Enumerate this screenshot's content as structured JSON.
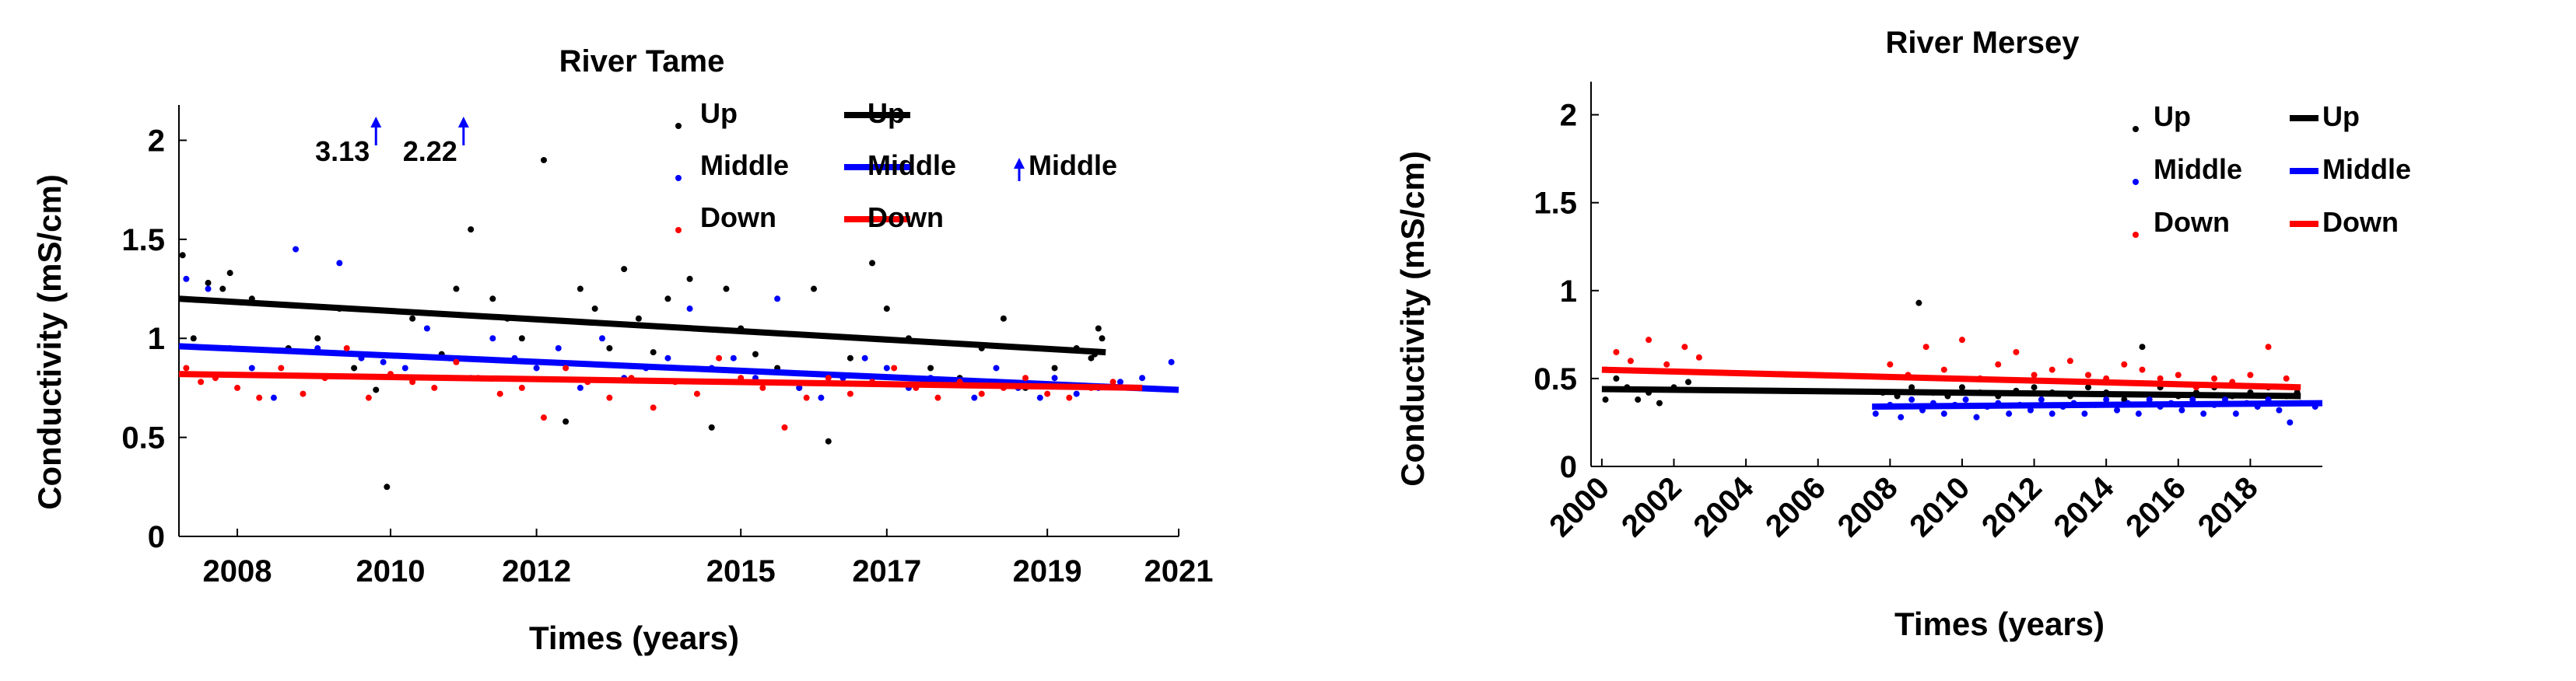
{
  "chart_data": [
    {
      "type": "scatter",
      "title": "River Tame",
      "xlabel": "Times (years)",
      "ylabel": "Conductivity (mS/cm)",
      "xlim": [
        2007.3,
        2021.0
      ],
      "ylim": [
        0,
        2.1
      ],
      "x_ticks": [
        {
          "value": 2008.1,
          "label": "2008"
        },
        {
          "value": 2010.2,
          "label": "2010"
        },
        {
          "value": 2012.2,
          "label": "2012"
        },
        {
          "value": 2015.0,
          "label": "2015"
        },
        {
          "value": 2017.0,
          "label": "2017"
        },
        {
          "value": 2019.2,
          "label": "2019"
        },
        {
          "value": 2021.0,
          "label": "2021"
        }
      ],
      "y_ticks": [
        {
          "value": 0,
          "label": "0"
        },
        {
          "value": 0.5,
          "label": "0.5"
        },
        {
          "value": 1,
          "label": "1"
        },
        {
          "value": 1.5,
          "label": "1.5"
        },
        {
          "value": 2,
          "label": "2"
        }
      ],
      "legend": {
        "position": "top-right",
        "marker_entries": [
          "Up",
          "Middle",
          "Down"
        ],
        "line_entries": [
          "Up",
          "Middle",
          "Down"
        ],
        "arrow_entry": "Middle"
      },
      "annotations": [
        {
          "text": "3.13",
          "x": 2010.0,
          "series": "Middle"
        },
        {
          "text": "2.22",
          "x": 2011.2,
          "series": "Middle"
        }
      ],
      "series": [
        {
          "name": "Up",
          "color": "#000000",
          "trend": {
            "x": [
              2007.3,
              2020.0
            ],
            "y": [
              1.2,
              0.93
            ]
          },
          "x": [
            2007.35,
            2007.5,
            2007.7,
            2007.9,
            2008.0,
            2008.3,
            2008.8,
            2009.2,
            2009.5,
            2009.7,
            2010.0,
            2010.15,
            2010.5,
            2010.9,
            2011.1,
            2011.3,
            2011.6,
            2011.8,
            2012.0,
            2012.3,
            2012.6,
            2012.8,
            2013.0,
            2013.2,
            2013.4,
            2013.6,
            2013.8,
            2014.0,
            2014.3,
            2014.6,
            2014.8,
            2015.0,
            2015.2,
            2015.5,
            2015.8,
            2016.0,
            2016.2,
            2016.5,
            2016.8,
            2017.0,
            2017.3,
            2017.6,
            2018.0,
            2018.3,
            2018.6,
            2018.9,
            2019.3,
            2019.6,
            2019.8,
            2019.85,
            2019.9,
            2019.95
          ],
          "y": [
            1.42,
            1.0,
            1.28,
            1.25,
            1.33,
            1.2,
            0.95,
            1.0,
            1.15,
            0.85,
            0.74,
            0.25,
            1.1,
            0.92,
            1.25,
            1.55,
            1.2,
            1.1,
            1.0,
            1.9,
            0.58,
            1.25,
            1.15,
            0.95,
            1.35,
            1.1,
            0.93,
            1.2,
            1.3,
            0.55,
            1.25,
            1.05,
            0.92,
            0.85,
            0.75,
            1.25,
            0.48,
            0.9,
            1.38,
            1.15,
            1.0,
            0.85,
            0.8,
            0.95,
            1.1,
            0.75,
            0.85,
            0.95,
            0.9,
            0.92,
            1.05,
            1.0
          ]
        },
        {
          "name": "Middle",
          "color": "#0000ff",
          "trend": {
            "x": [
              2007.3,
              2021.0
            ],
            "y": [
              0.96,
              0.74
            ]
          },
          "x": [
            2007.4,
            2007.7,
            2008.0,
            2008.3,
            2008.6,
            2008.9,
            2009.2,
            2009.5,
            2009.8,
            2010.1,
            2010.4,
            2010.7,
            2011.0,
            2011.3,
            2011.6,
            2011.9,
            2012.2,
            2012.5,
            2012.8,
            2013.1,
            2013.4,
            2013.7,
            2014.0,
            2014.3,
            2014.6,
            2014.9,
            2015.2,
            2015.5,
            2015.8,
            2016.1,
            2016.4,
            2016.7,
            2017.0,
            2017.3,
            2017.6,
            2017.9,
            2018.2,
            2018.5,
            2018.8,
            2019.1,
            2019.3,
            2019.6,
            2019.9,
            2020.2,
            2020.5,
            2020.9
          ],
          "y": [
            1.3,
            1.25,
            0.95,
            0.85,
            0.7,
            1.45,
            0.95,
            1.38,
            0.9,
            0.88,
            0.85,
            1.05,
            0.9,
            0.8,
            1.0,
            0.9,
            0.85,
            0.95,
            0.75,
            1.0,
            0.8,
            0.85,
            0.9,
            1.15,
            0.85,
            0.9,
            0.8,
            1.2,
            0.75,
            0.7,
            0.8,
            0.9,
            0.85,
            0.75,
            0.8,
            0.78,
            0.7,
            0.85,
            0.75,
            0.7,
            0.8,
            0.72,
            0.75,
            0.78,
            0.8,
            0.88
          ]
        },
        {
          "name": "Down",
          "color": "#ff0000",
          "trend": {
            "x": [
              2007.3,
              2020.5
            ],
            "y": [
              0.82,
              0.75
            ]
          },
          "x": [
            2007.4,
            2007.6,
            2007.8,
            2008.1,
            2008.4,
            2008.7,
            2009.0,
            2009.3,
            2009.6,
            2009.9,
            2010.2,
            2010.5,
            2010.8,
            2011.1,
            2011.4,
            2011.7,
            2012.0,
            2012.3,
            2012.6,
            2012.9,
            2013.2,
            2013.5,
            2013.8,
            2014.1,
            2014.4,
            2014.7,
            2015.0,
            2015.3,
            2015.6,
            2015.9,
            2016.2,
            2016.5,
            2016.8,
            2017.1,
            2017.4,
            2017.7,
            2018.0,
            2018.3,
            2018.6,
            2018.9,
            2019.2,
            2019.5,
            2019.8,
            2020.1
          ],
          "y": [
            0.85,
            0.78,
            0.8,
            0.75,
            0.7,
            0.85,
            0.72,
            0.8,
            0.95,
            0.7,
            0.82,
            0.78,
            0.75,
            0.88,
            0.8,
            0.72,
            0.75,
            0.6,
            0.85,
            0.78,
            0.7,
            0.8,
            0.65,
            0.78,
            0.72,
            0.9,
            0.8,
            0.75,
            0.55,
            0.7,
            0.8,
            0.72,
            0.78,
            0.85,
            0.75,
            0.7,
            0.78,
            0.72,
            0.75,
            0.8,
            0.72,
            0.7,
            0.75,
            0.78
          ]
        }
      ]
    },
    {
      "type": "scatter",
      "title": "River Mersey",
      "xlabel": "Times (years)",
      "ylabel": "Conductivity (mS/cm)",
      "xlim": [
        1999.7,
        2020.0
      ],
      "ylim": [
        0,
        2.1
      ],
      "x_ticks": [
        {
          "value": 2000,
          "label": "2000"
        },
        {
          "value": 2002,
          "label": "2002"
        },
        {
          "value": 2004,
          "label": "2004"
        },
        {
          "value": 2006,
          "label": "2006"
        },
        {
          "value": 2008,
          "label": "2008"
        },
        {
          "value": 2010,
          "label": "2010"
        },
        {
          "value": 2012,
          "label": "2012"
        },
        {
          "value": 2014,
          "label": "2014"
        },
        {
          "value": 2016,
          "label": "2016"
        },
        {
          "value": 2018,
          "label": "2018"
        }
      ],
      "y_ticks": [
        {
          "value": 0,
          "label": "0"
        },
        {
          "value": 0.5,
          "label": "0.5"
        },
        {
          "value": 1,
          "label": "1"
        },
        {
          "value": 1.5,
          "label": "1.5"
        },
        {
          "value": 2,
          "label": "2"
        }
      ],
      "legend": {
        "position": "top-right",
        "marker_entries": [
          "Up",
          "Middle",
          "Down"
        ],
        "line_entries": [
          "Up",
          "Middle",
          "Down"
        ]
      },
      "series": [
        {
          "name": "Up",
          "color": "#000000",
          "trend": {
            "x": [
              2000.0,
              2019.4
            ],
            "y": [
              0.44,
              0.4
            ]
          },
          "x": [
            2000.1,
            2000.4,
            2000.7,
            2001.0,
            2001.3,
            2001.6,
            2002.0,
            2002.4,
            2007.8,
            2008.2,
            2008.6,
            2008.8,
            2009.2,
            2009.6,
            2010.0,
            2010.5,
            2011.0,
            2011.5,
            2012.0,
            2012.5,
            2013.0,
            2013.5,
            2014.0,
            2014.5,
            2015.0,
            2015.5,
            2016.0,
            2016.5,
            2017.0,
            2017.5,
            2018.0,
            2018.5,
            2019.0,
            2019.3
          ],
          "y": [
            0.38,
            0.5,
            0.45,
            0.38,
            0.42,
            0.36,
            0.45,
            0.48,
            0.42,
            0.4,
            0.45,
            0.93,
            0.42,
            0.4,
            0.45,
            0.42,
            0.4,
            0.43,
            0.45,
            0.42,
            0.4,
            0.45,
            0.42,
            0.38,
            0.68,
            0.45,
            0.4,
            0.42,
            0.45,
            0.4,
            0.42,
            0.45,
            0.4,
            0.42
          ]
        },
        {
          "name": "Middle",
          "color": "#0000ff",
          "trend": {
            "x": [
              2007.5,
              2020.0
            ],
            "y": [
              0.34,
              0.36
            ]
          },
          "x": [
            2007.6,
            2008.0,
            2008.3,
            2008.6,
            2008.9,
            2009.2,
            2009.5,
            2009.8,
            2010.1,
            2010.4,
            2010.7,
            2011.0,
            2011.3,
            2011.6,
            2011.9,
            2012.2,
            2012.5,
            2012.8,
            2013.1,
            2013.4,
            2013.7,
            2014.0,
            2014.3,
            2014.6,
            2014.9,
            2015.2,
            2015.5,
            2015.8,
            2016.1,
            2016.4,
            2016.7,
            2017.0,
            2017.3,
            2017.6,
            2017.9,
            2018.2,
            2018.5,
            2018.8,
            2019.1,
            2019.4,
            2019.8
          ],
          "y": [
            0.3,
            0.35,
            0.28,
            0.38,
            0.32,
            0.36,
            0.3,
            0.35,
            0.38,
            0.28,
            0.34,
            0.36,
            0.3,
            0.35,
            0.32,
            0.38,
            0.3,
            0.34,
            0.36,
            0.3,
            0.35,
            0.38,
            0.32,
            0.36,
            0.3,
            0.38,
            0.34,
            0.36,
            0.32,
            0.38,
            0.3,
            0.35,
            0.38,
            0.3,
            0.36,
            0.34,
            0.38,
            0.32,
            0.25,
            0.36,
            0.34
          ]
        },
        {
          "name": "Down",
          "color": "#ff0000",
          "trend": {
            "x": [
              2000.0,
              2019.4
            ],
            "y": [
              0.55,
              0.45
            ]
          },
          "x": [
            2000.1,
            2000.4,
            2000.8,
            2001.3,
            2001.8,
            2002.3,
            2002.7,
            2008.0,
            2008.5,
            2009.0,
            2009.5,
            2010.0,
            2010.5,
            2011.0,
            2011.5,
            2012.0,
            2012.5,
            2013.0,
            2013.5,
            2014.0,
            2014.5,
            2015.0,
            2015.5,
            2016.0,
            2016.5,
            2017.0,
            2017.5,
            2018.0,
            2018.5,
            2019.0
          ],
          "y": [
            0.55,
            0.65,
            0.6,
            0.72,
            0.58,
            0.68,
            0.62,
            0.58,
            0.52,
            0.68,
            0.55,
            0.72,
            0.5,
            0.58,
            0.65,
            0.52,
            0.55,
            0.6,
            0.52,
            0.5,
            0.58,
            0.55,
            0.5,
            0.52,
            0.45,
            0.5,
            0.48,
            0.52,
            0.68,
            0.5
          ]
        }
      ]
    }
  ]
}
